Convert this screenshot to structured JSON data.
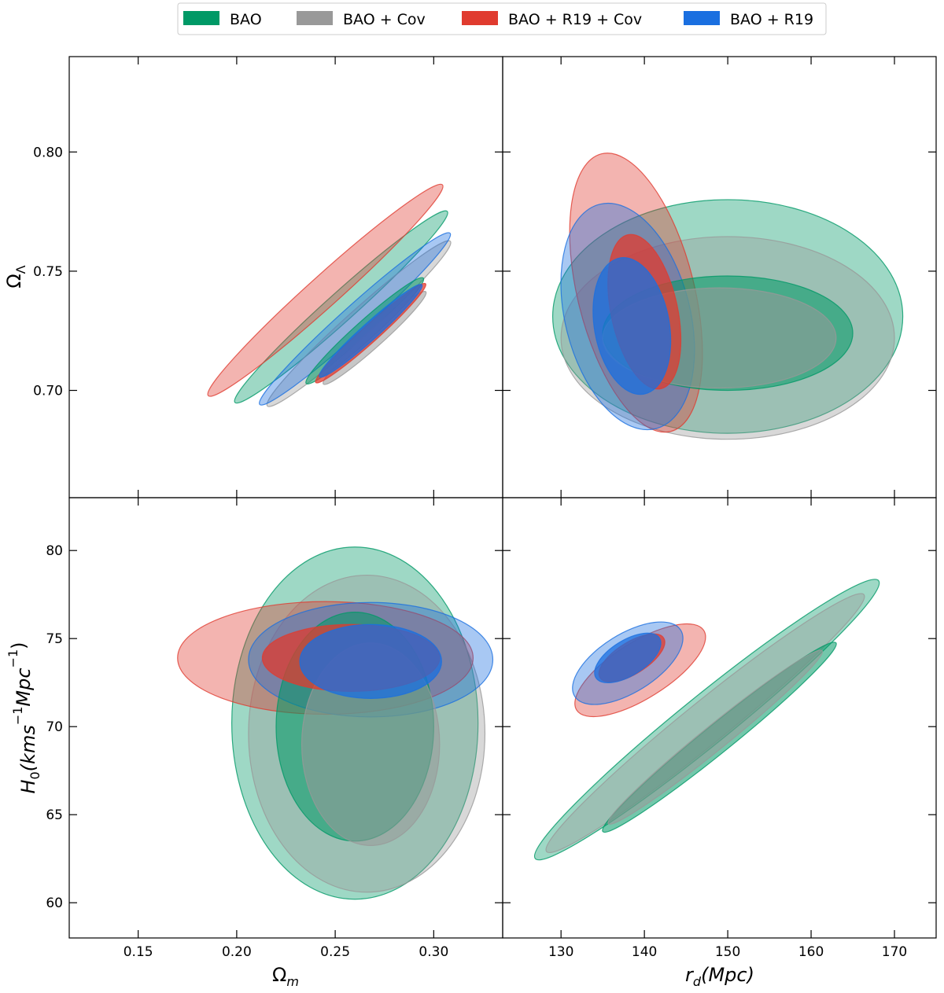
{
  "legend": {
    "placement": "top",
    "items": [
      {
        "key": "bao",
        "label": "BAO",
        "color": "#009966"
      },
      {
        "key": "cov",
        "label": "BAO + Cov",
        "color": "#999999"
      },
      {
        "key": "r19cov",
        "label": "BAO + R19 + Cov",
        "color": "#e03b2f"
      },
      {
        "key": "r19",
        "label": "BAO + R19",
        "color": "#1a6fe0"
      }
    ]
  },
  "chart_data": {
    "type": "contour",
    "panels": [
      {
        "id": "omega_lambda_vs_omega_m",
        "xlim": [
          0.115,
          0.335
        ],
        "ylim": [
          0.655,
          0.84
        ],
        "xticks": [
          0.15,
          0.2,
          0.25,
          0.3
        ],
        "yticks": [
          0.7,
          0.75,
          0.8
        ],
        "ytick_labels": [
          "0.70",
          "0.75",
          "0.80"
        ],
        "ylabel": "Ω_Λ",
        "contours": [
          {
            "series": "bao",
            "level": "2sigma",
            "center": [
              0.253,
              0.735
            ],
            "width": 0.145,
            "height": 0.012,
            "angle": -42
          },
          {
            "series": "cov",
            "level": "2sigma",
            "center": [
              0.262,
              0.728
            ],
            "width": 0.125,
            "height": 0.011,
            "angle": -42
          },
          {
            "series": "r19cov",
            "level": "2sigma",
            "center": [
              0.245,
              0.742
            ],
            "width": 0.16,
            "height": 0.013,
            "angle": -42
          },
          {
            "series": "r19",
            "level": "2sigma",
            "center": [
              0.26,
              0.73
            ],
            "width": 0.13,
            "height": 0.011,
            "angle": -42
          },
          {
            "series": "bao",
            "level": "1sigma",
            "center": [
              0.265,
              0.725
            ],
            "width": 0.08,
            "height": 0.008,
            "angle": -42
          },
          {
            "series": "cov",
            "level": "1sigma",
            "center": [
              0.27,
              0.722
            ],
            "width": 0.07,
            "height": 0.007,
            "angle": -42
          },
          {
            "series": "r19cov",
            "level": "1sigma",
            "center": [
              0.268,
              0.724
            ],
            "width": 0.075,
            "height": 0.007,
            "angle": -42
          },
          {
            "series": "r19",
            "level": "1sigma",
            "center": [
              0.268,
              0.725
            ],
            "width": 0.07,
            "height": 0.007,
            "angle": -42
          }
        ]
      },
      {
        "id": "omega_lambda_vs_rd",
        "xlim": [
          123,
          175
        ],
        "ylim": [
          0.655,
          0.84
        ],
        "xticks": [
          130,
          140,
          150,
          160,
          170
        ],
        "yticks": [
          0.7,
          0.75,
          0.8
        ],
        "contours": [
          {
            "series": "bao",
            "level": "2sigma",
            "center": [
              150,
              0.731
            ],
            "width": 42,
            "height": 0.098,
            "angle": 0
          },
          {
            "series": "cov",
            "level": "2sigma",
            "center": [
              150,
              0.722
            ],
            "width": 40,
            "height": 0.085,
            "angle": 0
          },
          {
            "series": "bao",
            "level": "1sigma",
            "center": [
              150,
              0.724
            ],
            "width": 30,
            "height": 0.048,
            "angle": 0
          },
          {
            "series": "cov",
            "level": "1sigma",
            "center": [
              149,
              0.722
            ],
            "width": 28,
            "height": 0.042,
            "angle": 0
          },
          {
            "series": "r19cov",
            "level": "2sigma",
            "center": [
              139,
              0.741
            ],
            "width": 14,
            "height": 0.12,
            "angle": -14
          },
          {
            "series": "r19cov",
            "level": "1sigma",
            "center": [
              140,
              0.733
            ],
            "width": 8,
            "height": 0.066,
            "angle": -12
          },
          {
            "series": "r19",
            "level": "2sigma",
            "center": [
              138,
              0.731
            ],
            "width": 15,
            "height": 0.097,
            "angle": -14
          },
          {
            "series": "r19",
            "level": "1sigma",
            "center": [
              138.5,
              0.727
            ],
            "width": 9,
            "height": 0.058,
            "angle": -10
          }
        ]
      },
      {
        "id": "h0_vs_omega_m",
        "xlim": [
          0.115,
          0.335
        ],
        "ylim": [
          58,
          83
        ],
        "xticks": [
          0.15,
          0.2,
          0.25,
          0.3
        ],
        "xtick_labels": [
          "0.15",
          "0.20",
          "0.25",
          "0.30"
        ],
        "yticks": [
          60,
          65,
          70,
          75,
          80
        ],
        "xlabel": "Ω_m",
        "ylabel": "H_0(kms^-1Mpc^-1)",
        "contours": [
          {
            "series": "bao",
            "level": "2sigma",
            "center": [
              0.26,
              70.2
            ],
            "width": 0.125,
            "height": 20,
            "angle": 0
          },
          {
            "series": "cov",
            "level": "2sigma",
            "center": [
              0.266,
              69.6
            ],
            "width": 0.12,
            "height": 18,
            "angle": 0
          },
          {
            "series": "bao",
            "level": "1sigma",
            "center": [
              0.26,
              70
            ],
            "width": 0.08,
            "height": 13,
            "angle": 0
          },
          {
            "series": "cov",
            "level": "1sigma",
            "center": [
              0.268,
              69
            ],
            "width": 0.07,
            "height": 11.5,
            "angle": 0
          },
          {
            "series": "r19cov",
            "level": "2sigma",
            "center": [
              0.245,
              73.9
            ],
            "width": 0.15,
            "height": 6.4,
            "angle": 0
          },
          {
            "series": "r19cov",
            "level": "1sigma",
            "center": [
              0.258,
              73.9
            ],
            "width": 0.09,
            "height": 3.8,
            "angle": 0
          },
          {
            "series": "r19",
            "level": "2sigma",
            "center": [
              0.268,
              73.8
            ],
            "width": 0.124,
            "height": 6.5,
            "angle": 0
          },
          {
            "series": "r19",
            "level": "1sigma",
            "center": [
              0.268,
              73.7
            ],
            "width": 0.072,
            "height": 4.2,
            "angle": 0
          }
        ]
      },
      {
        "id": "h0_vs_rd",
        "xlim": [
          123,
          175
        ],
        "ylim": [
          58,
          83
        ],
        "xticks": [
          130,
          140,
          150,
          160,
          170
        ],
        "xlabel": "r_d(Mpc)",
        "yticks": [
          60,
          65,
          70,
          75,
          80
        ],
        "contours": [
          {
            "series": "bao",
            "level": "2sigma",
            "center": [
              147.5,
              70.4
            ],
            "width": 53,
            "height": 2.8,
            "angle": -39
          },
          {
            "series": "cov",
            "level": "2sigma",
            "center": [
              147.3,
              70.2
            ],
            "width": 49,
            "height": 2.4,
            "angle": -39
          },
          {
            "series": "bao",
            "level": "1sigma",
            "center": [
              149,
              69.4
            ],
            "width": 36,
            "height": 1.6,
            "angle": -39
          },
          {
            "series": "cov",
            "level": "1sigma",
            "center": [
              148.5,
              69.4
            ],
            "width": 33,
            "height": 1.4,
            "angle": -39
          },
          {
            "series": "r19cov",
            "level": "2sigma",
            "center": [
              139.5,
              73.2
            ],
            "width": 18,
            "height": 3.2,
            "angle": -32
          },
          {
            "series": "r19cov",
            "level": "1sigma",
            "center": [
              138.5,
              73.9
            ],
            "width": 9,
            "height": 1.8,
            "angle": -32
          },
          {
            "series": "r19",
            "level": "2sigma",
            "center": [
              138,
              73.6
            ],
            "width": 15,
            "height": 3.3,
            "angle": -32
          },
          {
            "series": "r19",
            "level": "1sigma",
            "center": [
              138,
              73.9
            ],
            "width": 9,
            "height": 2,
            "angle": -32
          }
        ]
      }
    ]
  }
}
